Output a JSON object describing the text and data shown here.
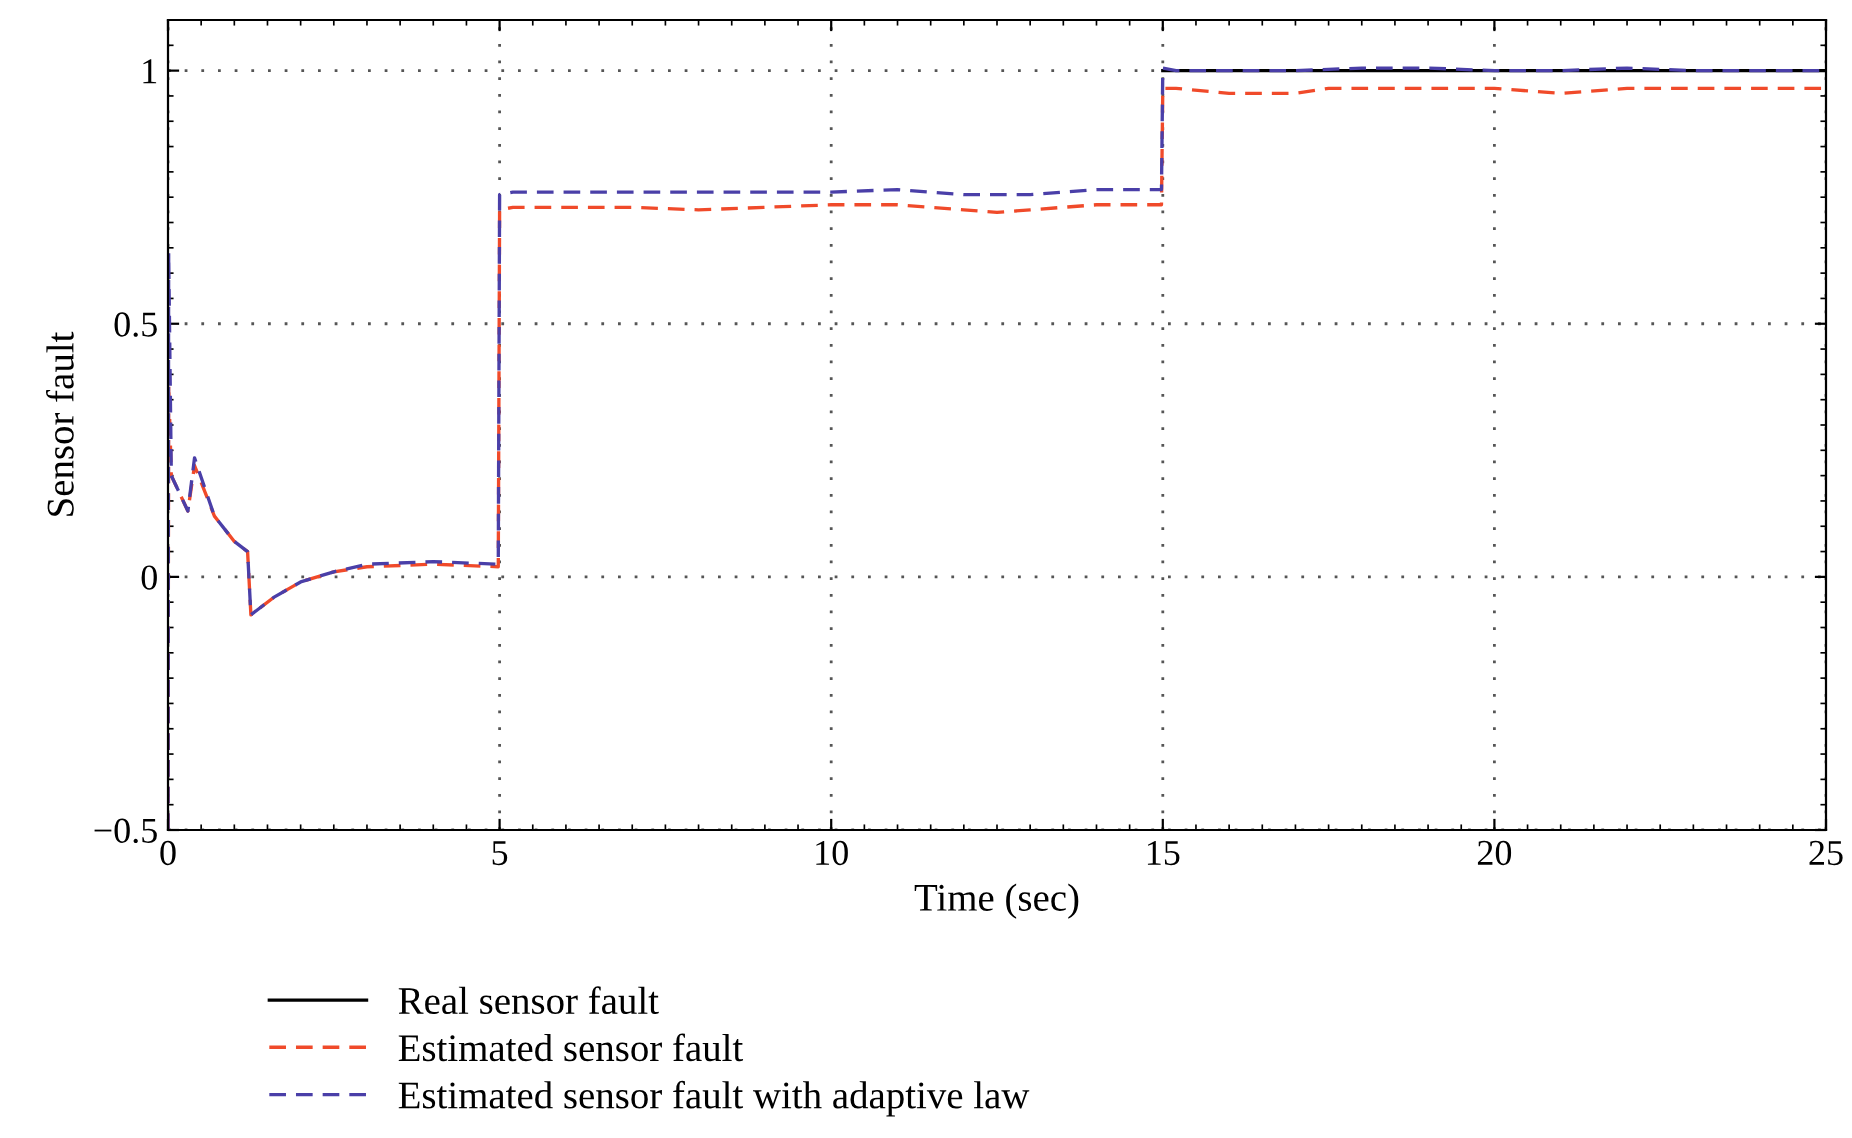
{
  "chart_data": {
    "type": "line",
    "xlabel": "Time (sec)",
    "ylabel": "Sensor fault",
    "xlim": [
      0,
      25
    ],
    "ylim": [
      -0.5,
      1.1
    ],
    "xticks": [
      0,
      5,
      10,
      15,
      20,
      25
    ],
    "yticks": [
      {
        "value": -0.5,
        "label": "−0.5"
      },
      0,
      0.5,
      1
    ],
    "grid": true,
    "legend": "bottom",
    "series": [
      {
        "name": "Real sensor fault",
        "color": "#000000",
        "line_style": "solid",
        "x": [
          15,
          25
        ],
        "values": [
          1,
          1
        ]
      },
      {
        "name": "Estimated sensor fault",
        "color": "#f04a2a",
        "line_style": "dashed",
        "x": [
          0,
          0.01,
          0.05,
          0.3,
          0.4,
          0.7,
          1.0,
          1.2,
          1.25,
          1.6,
          2,
          2.5,
          3,
          4,
          4.98,
          5.0,
          5.2,
          7,
          8,
          10,
          11,
          12,
          12.5,
          13,
          14,
          14.98,
          15.0,
          15.2,
          16,
          17,
          17.5,
          18,
          19,
          20,
          21,
          22,
          23,
          24,
          25
        ],
        "values": [
          -0.5,
          0.38,
          0.2,
          0.13,
          0.22,
          0.12,
          0.07,
          0.05,
          -0.075,
          -0.04,
          -0.01,
          0.01,
          0.02,
          0.025,
          0.02,
          0.725,
          0.73,
          0.73,
          0.725,
          0.735,
          0.735,
          0.725,
          0.72,
          0.725,
          0.735,
          0.735,
          0.965,
          0.965,
          0.955,
          0.955,
          0.965,
          0.965,
          0.965,
          0.965,
          0.955,
          0.965,
          0.965,
          0.965,
          0.965
        ]
      },
      {
        "name": "Estimated sensor fault with adaptive law",
        "color": "#4a3fa8",
        "line_style": "dashed",
        "x": [
          0,
          0.01,
          0.05,
          0.3,
          0.4,
          0.7,
          1.0,
          1.2,
          1.25,
          1.6,
          2,
          2.5,
          3,
          4,
          4.98,
          5.0,
          5.2,
          8,
          10,
          11,
          12,
          13,
          14,
          14.98,
          15.0,
          15.2,
          17,
          18,
          19,
          20,
          21,
          22,
          23,
          24,
          25
        ],
        "values": [
          -0.5,
          0.64,
          0.2,
          0.13,
          0.235,
          0.12,
          0.07,
          0.05,
          -0.075,
          -0.04,
          -0.01,
          0.01,
          0.025,
          0.03,
          0.025,
          0.755,
          0.76,
          0.76,
          0.76,
          0.765,
          0.755,
          0.755,
          0.765,
          0.765,
          1.005,
          1.0,
          1.0,
          1.005,
          1.005,
          1.0,
          1.0,
          1.005,
          1.0,
          1.0,
          1.0
        ]
      }
    ]
  }
}
